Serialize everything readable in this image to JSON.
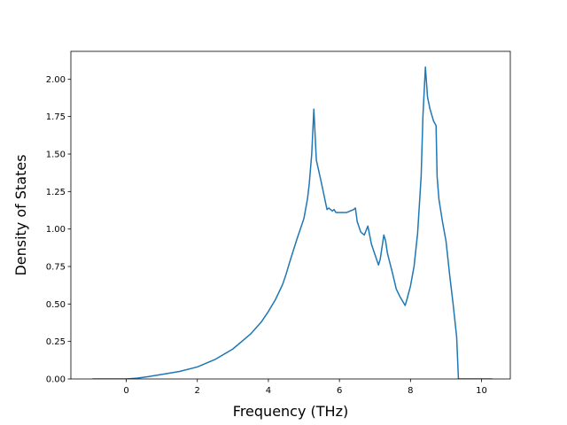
{
  "chart_data": {
    "type": "line",
    "title": "",
    "xlabel": "Frequency (THz)",
    "ylabel": "Density of States",
    "xlim": [
      -1.56,
      10.81
    ],
    "ylim": [
      0,
      2.185
    ],
    "xticks": [
      0,
      2,
      4,
      6,
      8,
      10
    ],
    "yticks": [
      0,
      0.25,
      0.5,
      0.75,
      1.0,
      1.25,
      1.5,
      1.75,
      2.0
    ],
    "xtick_labels": [
      "0",
      "2",
      "4",
      "6",
      "8",
      "10"
    ],
    "ytick_labels": [
      "0.00",
      "0.25",
      "0.50",
      "0.75",
      "1.00",
      "1.25",
      "1.50",
      "1.75",
      "2.00"
    ],
    "grid": false,
    "legend": "none",
    "line_color": "#1f77b4",
    "series": [
      {
        "x": [
          -0.95,
          -0.5,
          0.0,
          0.3,
          0.6,
          1.0,
          1.5,
          2.0,
          2.5,
          3.0,
          3.5,
          3.8,
          4.0,
          4.2,
          4.4,
          4.5,
          4.6,
          4.8,
          5.0,
          5.1,
          5.15,
          5.22,
          5.28,
          5.35,
          5.5,
          5.65,
          5.7,
          5.8,
          5.85,
          5.9,
          6.0,
          6.1,
          6.2,
          6.3,
          6.4,
          6.45,
          6.5,
          6.6,
          6.7,
          6.8,
          6.9,
          7.0,
          7.1,
          7.15,
          7.25,
          7.3,
          7.35,
          7.5,
          7.6,
          7.7,
          7.85,
          7.9,
          8.0,
          8.1,
          8.2,
          8.3,
          8.35,
          8.42,
          8.48,
          8.55,
          8.65,
          8.72,
          8.75,
          8.8,
          8.9,
          9.0,
          9.1,
          9.2,
          9.3,
          9.35,
          10.3
        ],
        "y": [
          0.0,
          0.0,
          0.0,
          0.005,
          0.015,
          0.03,
          0.05,
          0.08,
          0.13,
          0.2,
          0.3,
          0.38,
          0.45,
          0.53,
          0.63,
          0.7,
          0.78,
          0.93,
          1.07,
          1.2,
          1.3,
          1.5,
          1.8,
          1.46,
          1.3,
          1.13,
          1.14,
          1.12,
          1.13,
          1.11,
          1.11,
          1.11,
          1.11,
          1.12,
          1.13,
          1.14,
          1.05,
          0.98,
          0.96,
          1.02,
          0.9,
          0.83,
          0.76,
          0.8,
          0.96,
          0.92,
          0.84,
          0.7,
          0.6,
          0.55,
          0.49,
          0.53,
          0.62,
          0.75,
          0.97,
          1.35,
          1.75,
          2.08,
          1.88,
          1.8,
          1.72,
          1.69,
          1.35,
          1.2,
          1.05,
          0.92,
          0.7,
          0.5,
          0.28,
          0.0,
          0.0
        ]
      }
    ]
  }
}
